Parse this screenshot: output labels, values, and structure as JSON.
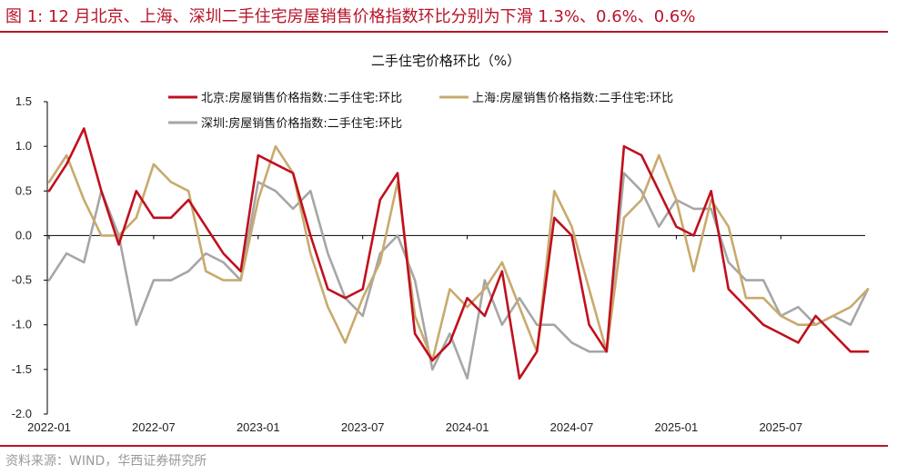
{
  "figure_title": "图 1:  12 月北京、上海、深圳二手住宅房屋销售价格指数环比分别为下滑 1.3%、0.6%、0.6%",
  "source": "资料来源：WIND，华西证券研究所",
  "colors": {
    "accent": "#b8142a",
    "beijing": "#c0101e",
    "shanghai": "#c8aa6e",
    "shenzhen": "#a6a6a6"
  },
  "chart_data": {
    "type": "line",
    "title": "二手住宅价格环比（%）",
    "xlabel": "",
    "ylabel": "",
    "ylim": [
      -2.0,
      1.5
    ],
    "yticks": [
      "1.5",
      "1.0",
      "0.5",
      "0.0",
      "-0.5",
      "-1.0",
      "-1.5",
      "-2.0"
    ],
    "ytick_values": [
      1.5,
      1.0,
      0.5,
      0.0,
      -0.5,
      -1.0,
      -1.5,
      -2.0
    ],
    "x_tick_labels": [
      "2022-01",
      "2022-07",
      "2023-01",
      "2023-07",
      "2024-01",
      "2024-07",
      "2025-01",
      "2025-07"
    ],
    "x_tick_indices": [
      0,
      6,
      12,
      18,
      24,
      30,
      36,
      42
    ],
    "legend_position": "top",
    "series": [
      {
        "name": "北京:房屋销售价格指数:二手住宅:环比",
        "color": "#c0101e",
        "values": [
          0.5,
          0.8,
          1.2,
          0.5,
          -0.1,
          0.5,
          0.2,
          0.2,
          0.4,
          0.1,
          -0.2,
          -0.4,
          0.9,
          0.8,
          0.7,
          0.0,
          -0.6,
          -0.7,
          -0.6,
          0.4,
          0.7,
          -1.1,
          -1.4,
          -1.2,
          -0.7,
          -0.9,
          -0.4,
          -1.6,
          -1.3,
          0.2,
          0.0,
          -1.0,
          -1.3,
          1.0,
          0.9,
          0.5,
          0.1,
          0.0,
          0.5,
          -0.6,
          -0.8,
          -1.0,
          -1.1,
          -1.2,
          -0.9,
          -1.1,
          -1.3,
          -1.3
        ]
      },
      {
        "name": "上海:房屋销售价格指数:二手住宅:环比",
        "color": "#c8aa6e",
        "values": [
          0.6,
          0.9,
          0.4,
          0.0,
          0.0,
          0.2,
          0.8,
          0.6,
          0.5,
          -0.4,
          -0.5,
          -0.5,
          0.4,
          1.0,
          0.7,
          -0.2,
          -0.8,
          -1.2,
          -0.7,
          -0.3,
          0.6,
          -0.9,
          -1.4,
          -0.6,
          -0.8,
          -0.6,
          -0.3,
          -0.8,
          -1.3,
          0.5,
          0.1,
          -0.6,
          -1.3,
          0.2,
          0.4,
          0.9,
          0.4,
          -0.4,
          0.4,
          0.1,
          -0.7,
          -0.7,
          -0.9,
          -1.0,
          -1.0,
          -0.9,
          -0.8,
          -0.6
        ]
      },
      {
        "name": "深圳:房屋销售价格指数:二手住宅:环比",
        "color": "#a6a6a6",
        "values": [
          -0.5,
          -0.2,
          -0.3,
          0.5,
          0.0,
          -1.0,
          -0.5,
          -0.5,
          -0.4,
          -0.2,
          -0.3,
          -0.5,
          0.6,
          0.5,
          0.3,
          0.5,
          -0.2,
          -0.7,
          -0.9,
          -0.2,
          0.0,
          -0.5,
          -1.5,
          -1.1,
          -1.6,
          -0.5,
          -1.0,
          -0.7,
          -1.0,
          -1.0,
          -1.2,
          -1.3,
          -1.3,
          0.7,
          0.5,
          0.1,
          0.4,
          0.3,
          0.3,
          -0.3,
          -0.5,
          -0.5,
          -0.9,
          -0.8,
          -1.0,
          -0.9,
          -1.0,
          -0.6
        ]
      }
    ]
  }
}
